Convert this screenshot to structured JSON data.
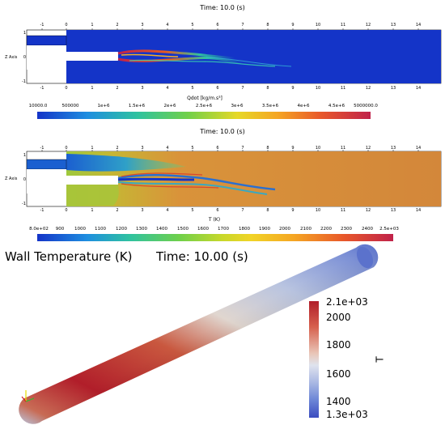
{
  "panel1": {
    "time": "Time: 10.0 (s)",
    "z_axis": "Z Axis",
    "x_ticks": [
      "-1",
      "0",
      "1",
      "2",
      "3",
      "4",
      "5",
      "6",
      "7",
      "8",
      "9",
      "10",
      "11",
      "12",
      "13",
      "14"
    ],
    "z_ticks": [
      "1",
      "0",
      "-1"
    ],
    "colorbar_title": "Qdot [kg/m.s³]",
    "colorbar_labels": [
      "10000.0",
      "500000",
      "1e+6",
      "1.5e+6",
      "2e+6",
      "2.5e+6",
      "3e+6",
      "3.5e+6",
      "4e+6",
      "4.5e+6",
      "5000000.0"
    ]
  },
  "panel2": {
    "time": "Time: 10.0 (s)",
    "z_axis": "Z Axis",
    "x_ticks": [
      "-1",
      "0",
      "1",
      "2",
      "3",
      "4",
      "5",
      "6",
      "7",
      "8",
      "9",
      "10",
      "11",
      "12",
      "13",
      "14"
    ],
    "z_ticks": [
      "1",
      "0",
      "-1"
    ],
    "colorbar_title": "T (K)",
    "colorbar_labels": [
      "8.0e+02",
      "900",
      "1000",
      "1100",
      "1200",
      "1300",
      "1400",
      "1500",
      "1600",
      "1700",
      "1800",
      "1900",
      "2000",
      "2100",
      "2200",
      "2300",
      "2400",
      "2.5e+03"
    ]
  },
  "panel3": {
    "title": "Wall Temperature (K)",
    "time": "Time:  10.00 (s)",
    "colorbar_title": "T",
    "colorbar_labels": [
      "2.1e+03",
      "2000",
      "1800",
      "1600",
      "1400",
      "1.3e+03"
    ]
  },
  "colors": {
    "jet_blue": "#1434c8",
    "hot_red": "#c0224a",
    "orange_field": "#d98a3a",
    "wall_blue": "#4a63c9",
    "wall_red": "#b11e2a"
  }
}
